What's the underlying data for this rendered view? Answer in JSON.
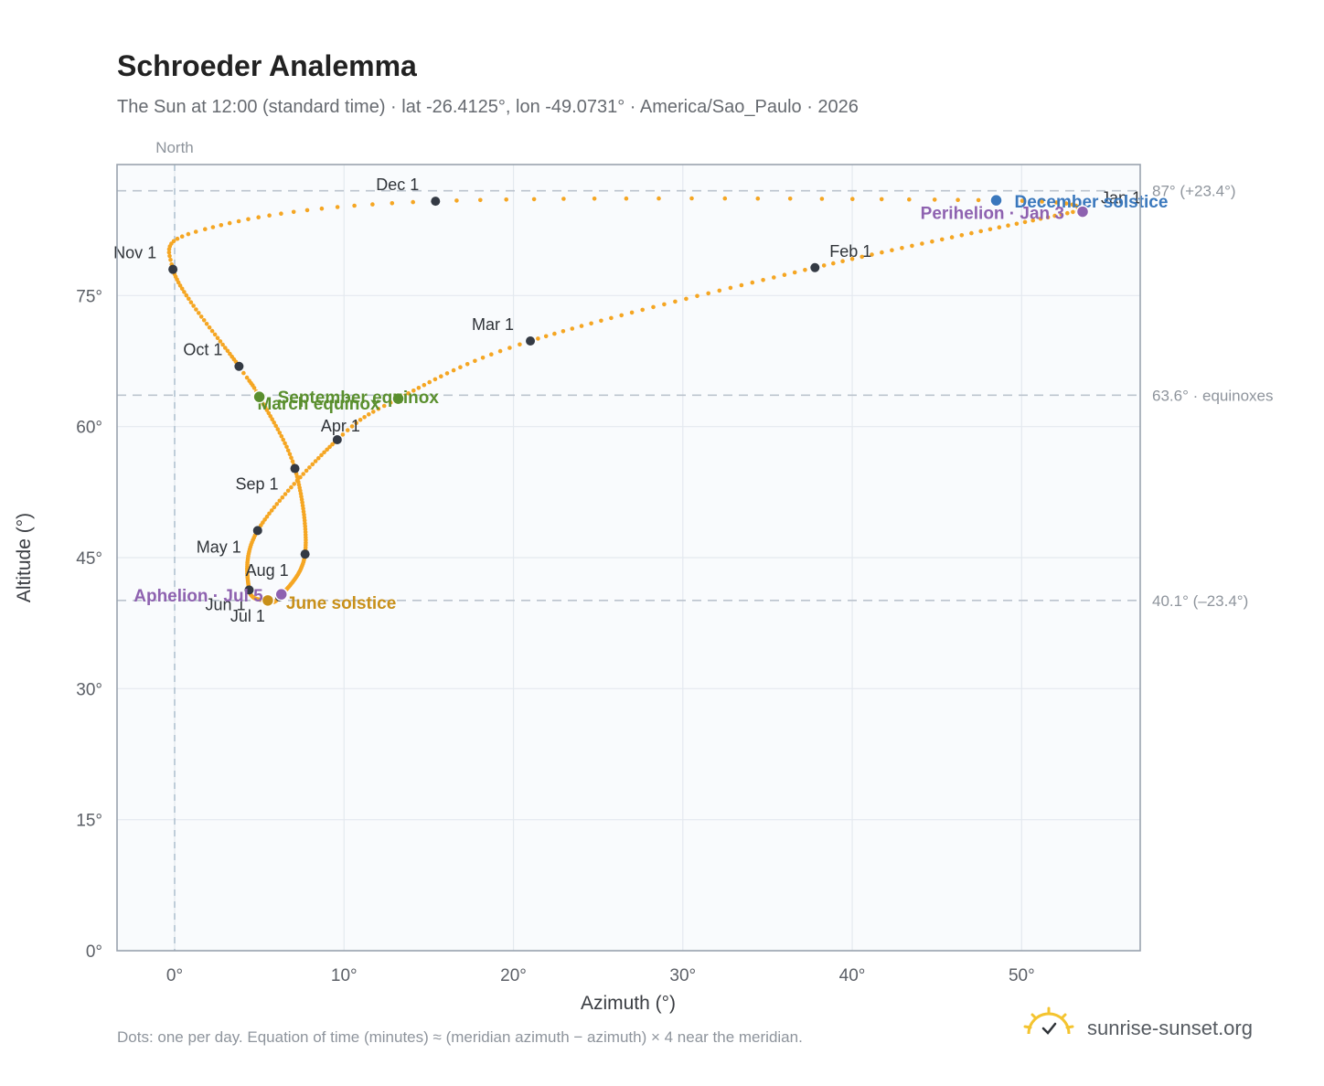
{
  "chart_data": {
    "type": "scatter",
    "title": "Schroeder Analemma",
    "subtitle": "The Sun at 12:00 (standard time) · lat -26.4125°, lon -49.0731° · America/Sao_Paulo · 2026",
    "xlabel": "Azimuth (°)",
    "ylabel": "Altitude (°)",
    "xlim": [
      -3.4,
      57
    ],
    "ylim": [
      0,
      90
    ],
    "x_ticks": [
      "0°",
      "10°",
      "20°",
      "30°",
      "40°",
      "50°"
    ],
    "y_ticks": [
      "0°",
      "15°",
      "30°",
      "45°",
      "60°",
      "75°"
    ],
    "x_tick_values": [
      0,
      10,
      20,
      30,
      40,
      50
    ],
    "y_tick_values": [
      0,
      15,
      30,
      45,
      60,
      75
    ],
    "grid": true,
    "north_label": "North",
    "reference_lines": [
      {
        "altitude": 87,
        "label": "87° (+23.4°)"
      },
      {
        "altitude": 63.6,
        "label": "63.6° · equinoxes"
      },
      {
        "altitude": 40.1,
        "label": "40.1° (–23.4°)"
      }
    ],
    "series_color": "#f5a623",
    "path_anchors": [
      {
        "day": 1,
        "az": 53.6,
        "alt": 84.8
      },
      {
        "day": 32,
        "az": 37.8,
        "alt": 78.2
      },
      {
        "day": 60,
        "az": 21.0,
        "alt": 69.8
      },
      {
        "day": 79,
        "az": 13.2,
        "alt": 63.2
      },
      {
        "day": 91,
        "az": 9.6,
        "alt": 58.5
      },
      {
        "day": 121,
        "az": 4.9,
        "alt": 48.1
      },
      {
        "day": 152,
        "az": 4.4,
        "alt": 41.3
      },
      {
        "day": 172,
        "az": 5.5,
        "alt": 40.1
      },
      {
        "day": 182,
        "az": 6.2,
        "alt": 40.5
      },
      {
        "day": 213,
        "az": 7.7,
        "alt": 45.4
      },
      {
        "day": 244,
        "az": 7.1,
        "alt": 55.2
      },
      {
        "day": 266,
        "az": 5.0,
        "alt": 63.4
      },
      {
        "day": 274,
        "az": 3.8,
        "alt": 66.9
      },
      {
        "day": 305,
        "az": -0.1,
        "alt": 78.0
      },
      {
        "day": 318,
        "az": 1.8,
        "alt": 82.6
      },
      {
        "day": 335,
        "az": 15.4,
        "alt": 85.8
      },
      {
        "day": 355,
        "az": 48.5,
        "alt": 85.9
      },
      {
        "day": 366,
        "az": 53.6,
        "alt": 84.8
      }
    ],
    "month_markers": [
      {
        "label": "Jan 1",
        "az": 53.6,
        "alt": 84.8
      },
      {
        "label": "Feb 1",
        "az": 37.8,
        "alt": 78.2
      },
      {
        "label": "Mar 1",
        "az": 21.0,
        "alt": 69.8
      },
      {
        "label": "Apr 1",
        "az": 9.6,
        "alt": 58.5
      },
      {
        "label": "May 1",
        "az": 4.9,
        "alt": 48.1
      },
      {
        "label": "Jun 1",
        "az": 4.4,
        "alt": 41.3
      },
      {
        "label": "Jul 1",
        "az": 6.2,
        "alt": 40.5
      },
      {
        "label": "Aug 1",
        "az": 7.7,
        "alt": 45.4
      },
      {
        "label": "Sep 1",
        "az": 7.1,
        "alt": 55.2
      },
      {
        "label": "Oct 1",
        "az": 3.8,
        "alt": 66.9
      },
      {
        "label": "Nov 1",
        "az": -0.1,
        "alt": 78.0
      },
      {
        "label": "Dec 1",
        "az": 15.4,
        "alt": 85.8
      }
    ],
    "events": [
      {
        "label": "March equinox",
        "az": 13.2,
        "alt": 63.2,
        "color": "#5a8f2e"
      },
      {
        "label": "September equinox",
        "az": 5.0,
        "alt": 63.4,
        "color": "#5a8f2e"
      },
      {
        "label": "June solstice",
        "az": 5.5,
        "alt": 40.1,
        "color": "#c8901a"
      },
      {
        "label": "December solstice",
        "az": 48.5,
        "alt": 85.9,
        "color": "#3a78bd"
      },
      {
        "label": "Perihelion · Jan 3",
        "az": 53.6,
        "alt": 84.6,
        "color": "#8e62b0"
      },
      {
        "label": "Aphelion · Jul 5",
        "az": 6.3,
        "alt": 40.8,
        "color": "#8e62b0"
      }
    ]
  },
  "footnote": "Dots: one per day. Equation of time (minutes) ≈ (meridian azimuth − azimuth) × 4 near the meridian.",
  "brand": "sunrise-sunset.org"
}
